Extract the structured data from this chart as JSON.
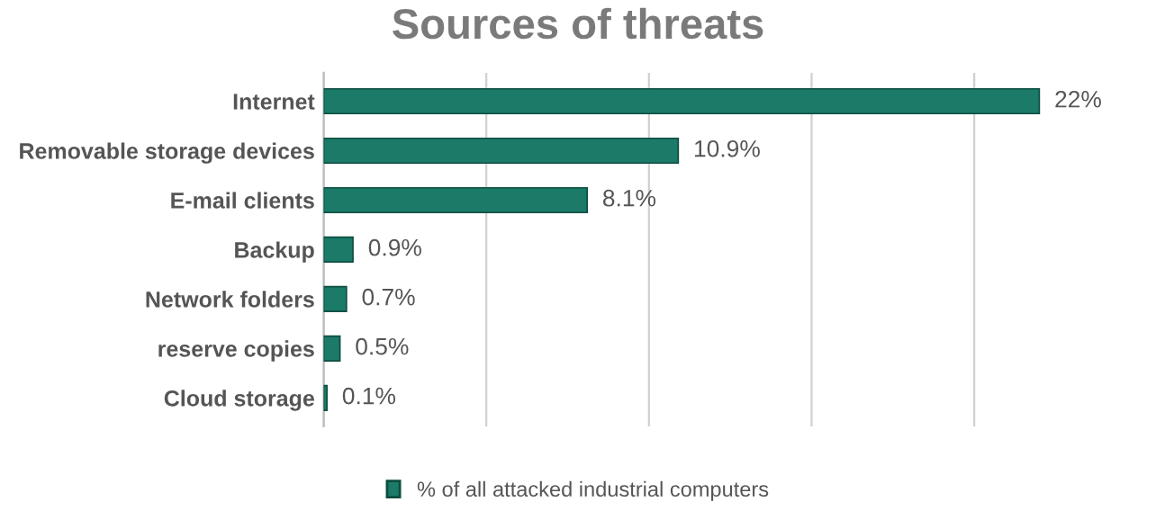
{
  "chart_data": {
    "type": "bar",
    "orientation": "horizontal",
    "title": "Sources of threats",
    "categories": [
      "Internet",
      "Removable storage devices",
      "E-mail clients",
      "Backup",
      "Network folders",
      "reserve copies",
      "Cloud storage"
    ],
    "series": [
      {
        "name": "% of all attacked industrial computers",
        "color": "#1b7a68",
        "values": [
          22,
          10.9,
          8.1,
          0.9,
          0.7,
          0.5,
          0.1
        ],
        "value_labels": [
          "22%",
          "10.9%",
          "8.1%",
          "0.9%",
          "0.7%",
          "0.5%",
          "0.1%"
        ]
      }
    ],
    "xticks": [
      {
        "value": 0,
        "label": null
      },
      {
        "value": 5,
        "label": null
      },
      {
        "value": 10,
        "label": null
      },
      {
        "value": 15,
        "label": null
      },
      {
        "value": 20,
        "label": null
      }
    ],
    "grid": "x",
    "legend": "bottom",
    "tick_labels": "y"
  }
}
